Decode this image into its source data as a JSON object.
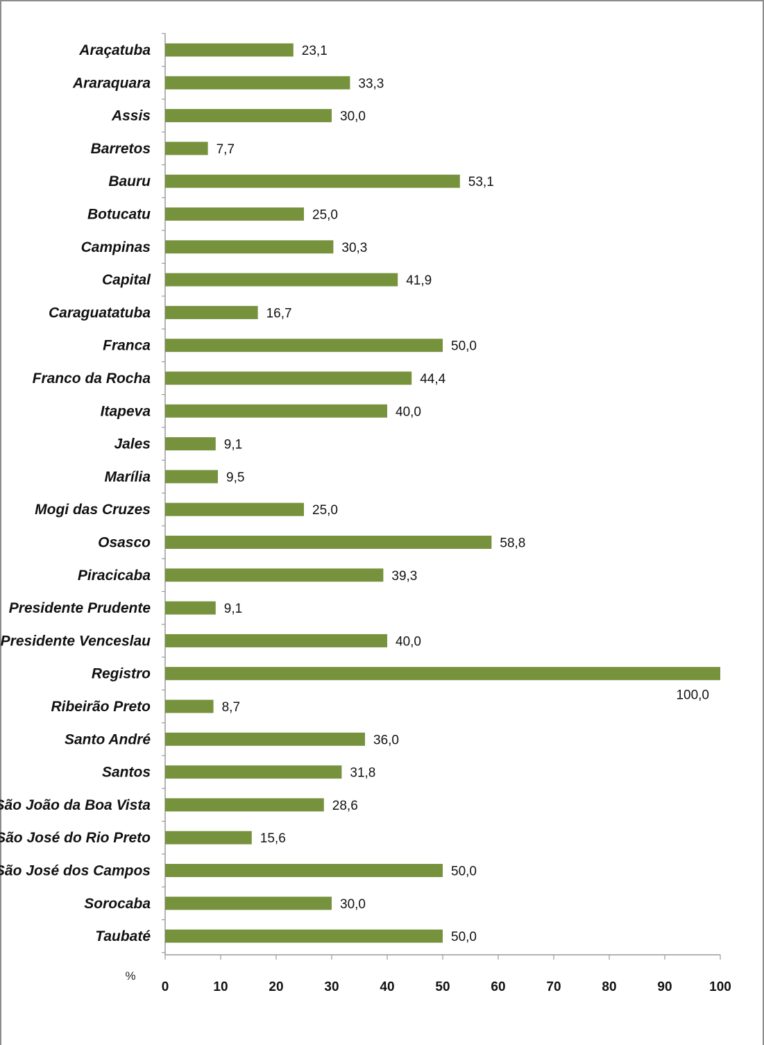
{
  "chart_data": {
    "type": "bar",
    "orientation": "horizontal",
    "unit_label": "%",
    "bar_color": "#76923c",
    "xlim": [
      0,
      100
    ],
    "x_ticks": [
      "0",
      "10",
      "20",
      "30",
      "40",
      "50",
      "60",
      "70",
      "80",
      "90",
      "100"
    ],
    "categories": [
      "Araçatuba",
      "Araraquara",
      "Assis",
      "Barretos",
      "Bauru",
      "Botucatu",
      "Campinas",
      "Capital",
      "Caraguatatuba",
      "Franca",
      "Franco da Rocha",
      "Itapeva",
      "Jales",
      "Marília",
      "Mogi das Cruzes",
      "Osasco",
      "Piracicaba",
      "Presidente Prudente",
      "Presidente Venceslau",
      "Registro",
      "Ribeirão Preto",
      "Santo André",
      "Santos",
      "São João da Boa Vista",
      "São José do Rio Preto",
      "São José dos Campos",
      "Sorocaba",
      "Taubaté"
    ],
    "values": [
      23.1,
      33.3,
      30.0,
      7.7,
      53.1,
      25.0,
      30.3,
      41.9,
      16.7,
      50.0,
      44.4,
      40.0,
      9.1,
      9.5,
      25.0,
      58.8,
      39.3,
      9.1,
      40.0,
      100.0,
      8.7,
      36.0,
      31.8,
      28.6,
      15.6,
      50.0,
      30.0,
      50.0
    ],
    "value_labels": [
      "23,1",
      "33,3",
      "30,0",
      "7,7",
      "53,1",
      "25,0",
      "30,3",
      "41,9",
      "16,7",
      "50,0",
      "44,4",
      "40,0",
      "9,1",
      "9,5",
      "25,0",
      "58,8",
      "39,3",
      "9,1",
      "40,0",
      "100,0",
      "8,7",
      "36,0",
      "31,8",
      "28,6",
      "15,6",
      "50,0",
      "30,0",
      "50,0"
    ]
  }
}
